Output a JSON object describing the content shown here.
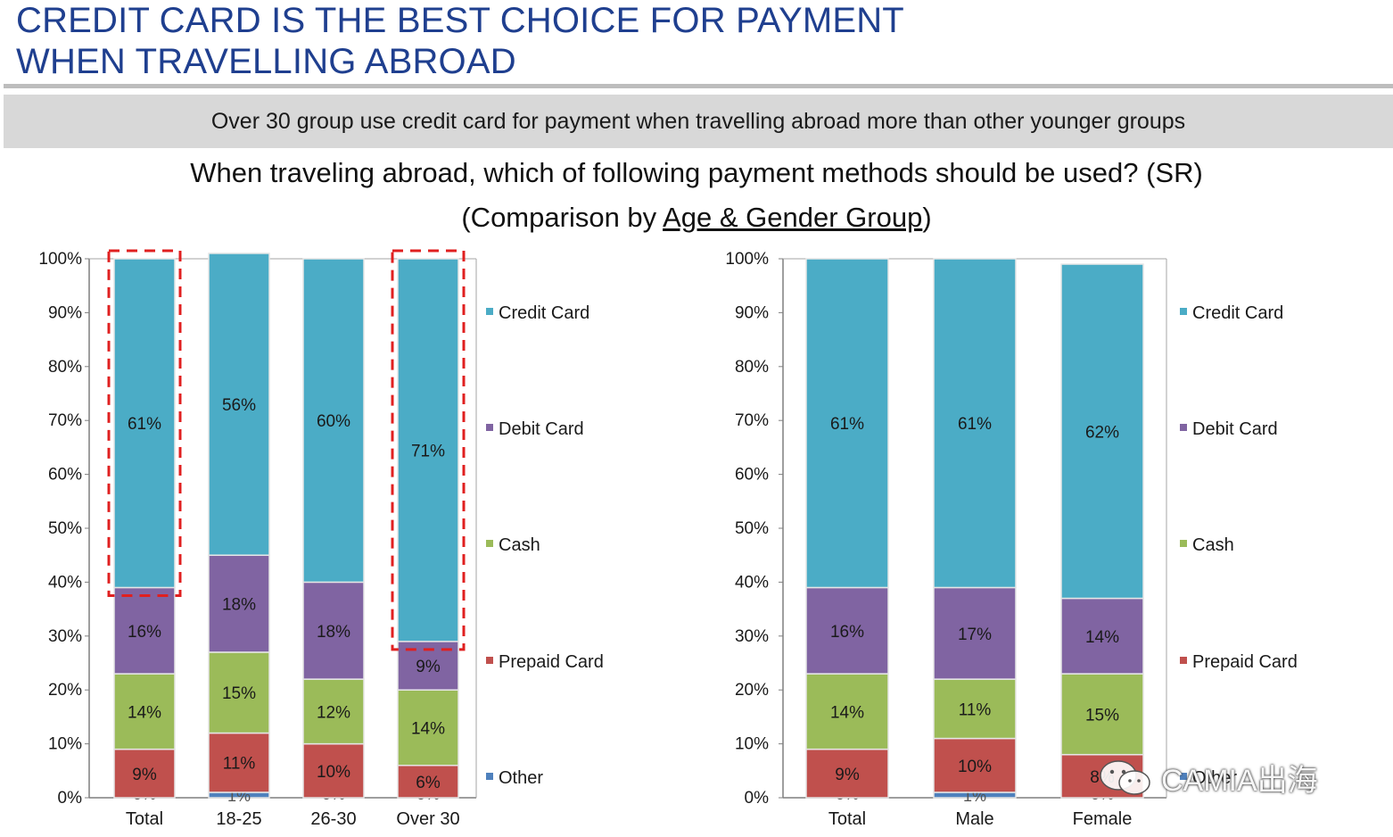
{
  "header": {
    "title_line1": "CREDIT CARD IS THE BEST CHOICE FOR PAYMENT",
    "title_line2": "WHEN TRAVELLING ABROAD",
    "subtitle": "Over 30 group use credit card for payment when travelling abroad more than other younger groups",
    "question_line1": "When traveling abroad, which of following payment methods should be used? (SR)",
    "question_prefix": "(Comparison by ",
    "question_underlined": "Age & Gender Group",
    "question_suffix": ")"
  },
  "watermark": {
    "text": "CAMIA出海",
    "icon": "wechat-icon"
  },
  "colors": {
    "Credit Card": "#4bacc6",
    "Debit Card": "#8064a2",
    "Cash": "#9bbb59",
    "Prepaid Card": "#c0504d",
    "Other": "#4f81bd",
    "highlight": "#e02020"
  },
  "chart_data": [
    {
      "type": "bar",
      "stacked": true,
      "categories": [
        "Total",
        "18-25",
        "26-30",
        "Over 30"
      ],
      "series": [
        {
          "name": "Other",
          "values": [
            0,
            1,
            0,
            0
          ]
        },
        {
          "name": "Prepaid Card",
          "values": [
            9,
            11,
            10,
            6
          ]
        },
        {
          "name": "Cash",
          "values": [
            14,
            15,
            12,
            14
          ]
        },
        {
          "name": "Debit Card",
          "values": [
            16,
            18,
            18,
            9
          ]
        },
        {
          "name": "Credit Card",
          "values": [
            61,
            56,
            60,
            71
          ]
        }
      ],
      "yticks": [
        "0%",
        "10%",
        "20%",
        "30%",
        "40%",
        "50%",
        "60%",
        "70%",
        "80%",
        "90%",
        "100%"
      ],
      "ylim": [
        0,
        100
      ],
      "legend": [
        "Credit Card",
        "Debit Card",
        "Cash",
        "Prepaid Card",
        "Other"
      ],
      "legend_position": "right",
      "highlighted_categories": [
        "Total",
        "Over 30"
      ]
    },
    {
      "type": "bar",
      "stacked": true,
      "categories": [
        "Total",
        "Male",
        "Female"
      ],
      "series": [
        {
          "name": "Other",
          "values": [
            0,
            1,
            0
          ]
        },
        {
          "name": "Prepaid Card",
          "values": [
            9,
            10,
            8
          ]
        },
        {
          "name": "Cash",
          "values": [
            14,
            11,
            15
          ]
        },
        {
          "name": "Debit Card",
          "values": [
            16,
            17,
            14
          ]
        },
        {
          "name": "Credit Card",
          "values": [
            61,
            61,
            62
          ]
        }
      ],
      "yticks": [
        "0%",
        "10%",
        "20%",
        "30%",
        "40%",
        "50%",
        "60%",
        "70%",
        "80%",
        "90%",
        "100%"
      ],
      "ylim": [
        0,
        100
      ],
      "legend": [
        "Credit Card",
        "Debit Card",
        "Cash",
        "Prepaid Card",
        "Other"
      ],
      "legend_position": "right",
      "highlighted_categories": []
    }
  ]
}
